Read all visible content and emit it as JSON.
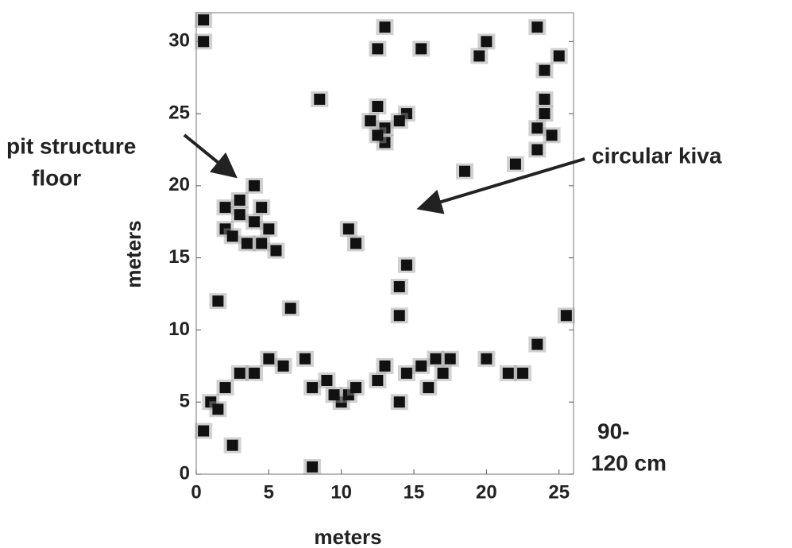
{
  "chart_data": {
    "type": "scatter",
    "xlabel": "meters",
    "ylabel": "meters",
    "xlim": [
      0,
      26
    ],
    "ylim": [
      0,
      32
    ],
    "xticks": [
      0,
      5,
      10,
      15,
      20,
      25
    ],
    "yticks": [
      0,
      5,
      10,
      15,
      20,
      25,
      30
    ],
    "grid": false,
    "color": "#111111",
    "x": [
      2,
      2.5,
      3,
      3.5,
      4,
      4.5,
      5,
      3,
      4,
      5.5,
      2,
      4.5,
      12,
      12.5,
      13,
      13,
      14.5,
      12.5,
      14,
      23.5,
      24,
      24.5,
      23.5,
      24,
      12.5,
      13,
      15.5,
      19.5,
      20,
      23.5,
      24,
      25,
      4,
      5,
      6,
      7.5,
      8,
      9,
      10,
      10.5,
      11,
      9.5,
      12.5,
      13,
      14,
      14.5,
      15.5,
      16,
      16.5,
      17,
      17.5,
      2,
      1,
      0.5,
      1.5,
      3,
      2.5,
      14,
      14,
      14.5,
      10.5,
      11,
      8.5,
      6.5,
      1.5,
      25.5,
      20,
      21.5,
      22.5,
      23.5,
      8,
      0.5,
      0.5,
      18.5,
      22
    ],
    "y": [
      17,
      16.5,
      18,
      16,
      17.5,
      16,
      17,
      19,
      20,
      15.5,
      18.5,
      18.5,
      24.5,
      25.5,
      24,
      23,
      25,
      23.5,
      24.5,
      24,
      25,
      23.5,
      22.5,
      26,
      29.5,
      31,
      29.5,
      29,
      30,
      31,
      28,
      29,
      7,
      8,
      7.5,
      8,
      6,
      6.5,
      5,
      5.5,
      6,
      5.5,
      6.5,
      7.5,
      5,
      7,
      7.5,
      6,
      8,
      7,
      8,
      6,
      5,
      3,
      4.5,
      7,
      2,
      13,
      11,
      14.5,
      17,
      16,
      26,
      11.5,
      12,
      11,
      8,
      7,
      7,
      9,
      0.5,
      31.5,
      30,
      21,
      21.5
    ],
    "annotations": [
      {
        "text": [
          "pit structure",
          "floor"
        ],
        "x": 2.5,
        "y": 20.8
      },
      {
        "text": [
          "circular kiva"
        ],
        "x": 15.6,
        "y": 18.5
      }
    ],
    "depth_label": [
      "90-",
      "120 cm"
    ]
  }
}
